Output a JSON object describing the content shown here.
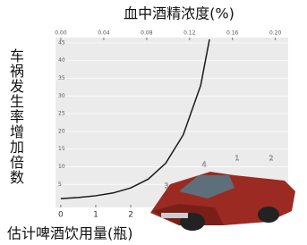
{
  "chart_data": {
    "type": "line",
    "title": "血中酒精浓度(%)",
    "ylabel": "车祸发生率增加倍数",
    "xlabel": "估计啤酒饮用量(瓶)",
    "x": [
      0,
      0.5,
      1,
      1.5,
      2,
      2.5,
      3,
      3.5,
      4,
      4.25
    ],
    "values": [
      1,
      1.3,
      1.8,
      2.6,
      4,
      6.5,
      11,
      19,
      33,
      46
    ],
    "color": "#1a1a1a",
    "xlim": [
      -0.15,
      6.5
    ],
    "xticks": [
      0,
      1,
      2
    ],
    "x2lim": [
      -0.005,
      0.212
    ],
    "x2ticks": [
      {
        "value": 0,
        "label": "0.00"
      },
      {
        "value": 0.04,
        "label": "0.04"
      },
      {
        "value": 0.08,
        "label": "0.08"
      },
      {
        "value": 0.12,
        "label": "0.12"
      },
      {
        "value": 0.16,
        "label": "0.16"
      },
      {
        "value": 0.2,
        "label": "0.20"
      }
    ],
    "ylim": [
      -1.5,
      46.5
    ],
    "yticks": [
      5,
      10,
      15,
      20,
      25,
      30,
      35,
      40,
      45
    ],
    "grid": true,
    "annotations": [
      "3",
      "4",
      "1",
      "2"
    ]
  }
}
